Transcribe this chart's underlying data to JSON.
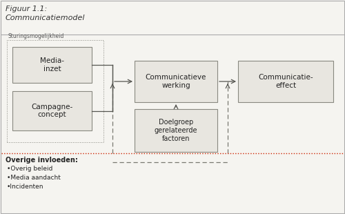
{
  "title_line1": "Figuur 1.1:",
  "title_line2": "Communicatiemodel",
  "bg_color": "#f5f4f0",
  "box_fill": "#e8e6e0",
  "box_edge": "#888880",
  "text_color": "#222222",
  "title_color": "#333333",
  "sturing_label": "Sturingsmogelijkheid",
  "overige_label": "Overige invloeden:",
  "overige_items": [
    "•Overig beleid",
    "•Media aandacht",
    "•Incidenten"
  ],
  "arrow_color": "#555550",
  "red_dot_color": "#cc2200",
  "gray_dash_color": "#777770",
  "outer_border_color": "#aaaaaa",
  "title_sep_color": "#aaaaaa"
}
